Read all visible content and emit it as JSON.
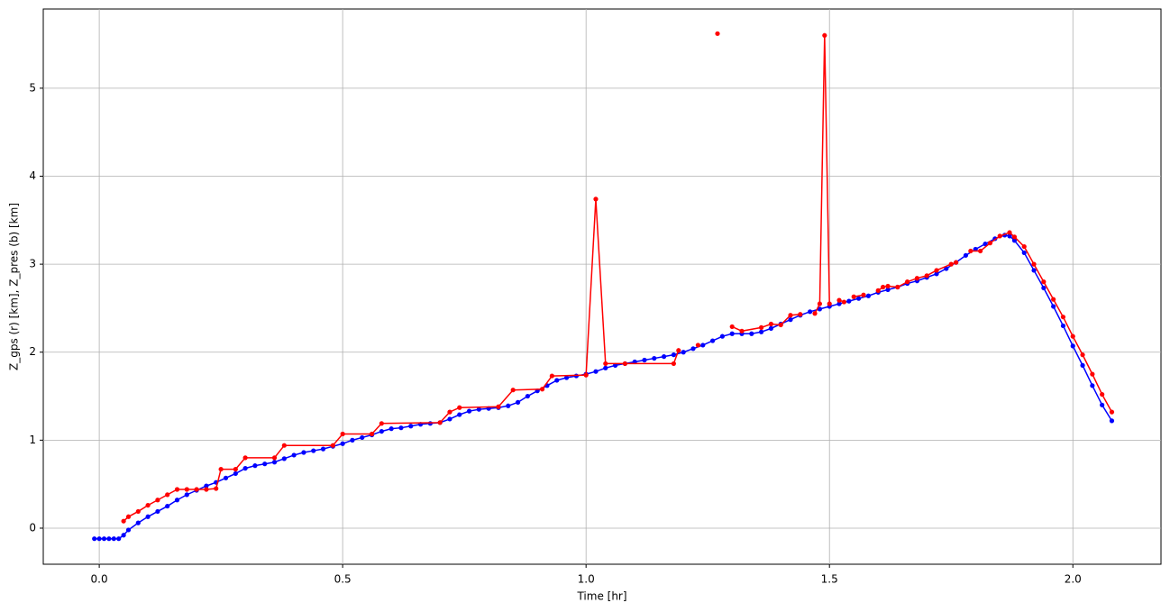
{
  "chart_data": {
    "type": "line",
    "xlabel": "Time [hr]",
    "ylabel": "Z_gps (r) [km], Z_pres (b) [km]",
    "xlim": [
      -0.115,
      2.181
    ],
    "ylim": [
      -0.41,
      5.9
    ],
    "xticks": [
      {
        "value": 0,
        "label": "0.0"
      },
      0.5,
      {
        "value": 1,
        "label": "1.0"
      },
      1.5,
      {
        "value": 2,
        "label": "2.0"
      }
    ],
    "yticks": [
      0,
      1,
      2,
      3,
      4,
      5
    ],
    "grid": true,
    "series": [
      {
        "color": "#0000ff",
        "x": [
          -0.01,
          0.0,
          0.01,
          0.02,
          0.03,
          0.04,
          0.05,
          0.06,
          0.08,
          0.1,
          0.12,
          0.14,
          0.16,
          0.18,
          0.2,
          0.22,
          0.24,
          0.26,
          0.28,
          0.3,
          0.32,
          0.34,
          0.36,
          0.38,
          0.4,
          0.42,
          0.44,
          0.46,
          0.48,
          0.5,
          0.52,
          0.54,
          0.56,
          0.58,
          0.6,
          0.62,
          0.64,
          0.66,
          0.68,
          0.7,
          0.72,
          0.74,
          0.76,
          0.78,
          0.8,
          0.82,
          0.84,
          0.86,
          0.88,
          0.9,
          0.92,
          0.94,
          0.96,
          0.98,
          1.0,
          1.02,
          1.04,
          1.06,
          1.08,
          1.1,
          1.12,
          1.14,
          1.16,
          1.18,
          1.2,
          1.22,
          1.24,
          1.26,
          1.28,
          1.3,
          1.32,
          1.34,
          1.36,
          1.38,
          1.4,
          1.42,
          1.44,
          1.46,
          1.48,
          1.5,
          1.52,
          1.54,
          1.56,
          1.58,
          1.6,
          1.62,
          1.64,
          1.66,
          1.68,
          1.7,
          1.72,
          1.74,
          1.76,
          1.78,
          1.8,
          1.82,
          1.84,
          1.86,
          1.87,
          1.88,
          1.9,
          1.92,
          1.94,
          1.96,
          1.98,
          2.0,
          2.02,
          2.04,
          2.06,
          2.08
        ],
        "values": [
          -0.12,
          -0.12,
          -0.12,
          -0.12,
          -0.12,
          -0.12,
          -0.08,
          -0.02,
          0.06,
          0.13,
          0.19,
          0.25,
          0.32,
          0.38,
          0.43,
          0.48,
          0.52,
          0.57,
          0.62,
          0.68,
          0.71,
          0.73,
          0.75,
          0.79,
          0.83,
          0.86,
          0.88,
          0.9,
          0.93,
          0.96,
          1.0,
          1.03,
          1.06,
          1.1,
          1.13,
          1.14,
          1.16,
          1.18,
          1.19,
          1.2,
          1.24,
          1.29,
          1.33,
          1.35,
          1.36,
          1.37,
          1.39,
          1.43,
          1.5,
          1.56,
          1.62,
          1.68,
          1.71,
          1.73,
          1.75,
          1.78,
          1.82,
          1.85,
          1.87,
          1.89,
          1.91,
          1.93,
          1.95,
          1.97,
          2.0,
          2.04,
          2.08,
          2.13,
          2.18,
          2.21,
          2.21,
          2.21,
          2.23,
          2.27,
          2.32,
          2.37,
          2.42,
          2.46,
          2.49,
          2.52,
          2.55,
          2.58,
          2.61,
          2.64,
          2.68,
          2.71,
          2.74,
          2.78,
          2.81,
          2.85,
          2.89,
          2.95,
          3.02,
          3.1,
          3.17,
          3.23,
          3.29,
          3.33,
          3.32,
          3.27,
          3.13,
          2.93,
          2.73,
          2.52,
          2.3,
          2.07,
          1.85,
          1.62,
          1.4,
          1.22
        ]
      },
      {
        "color": "#ff0000",
        "x": [
          0.05,
          0.06,
          0.08,
          0.1,
          0.12,
          0.14,
          0.16,
          0.18,
          0.2,
          0.22,
          0.24,
          0.25,
          0.28,
          0.3,
          0.36,
          0.38,
          0.48,
          0.5,
          0.56,
          0.58,
          0.7,
          0.72,
          0.74,
          0.82,
          0.85,
          0.91,
          0.93,
          1.0,
          1.02,
          1.04,
          1.08,
          1.18,
          1.19,
          null,
          1.23,
          null,
          1.27,
          null,
          1.3,
          1.32,
          1.36,
          1.38,
          1.4,
          1.42,
          1.44,
          null,
          1.47,
          1.48,
          1.49,
          1.5,
          null,
          1.52,
          1.53,
          null,
          1.55,
          1.57,
          null,
          1.6,
          1.61,
          1.62,
          1.64,
          1.66,
          1.68,
          1.7,
          1.72,
          1.75,
          1.76,
          null,
          1.79,
          1.81,
          1.83,
          1.85,
          1.87,
          1.88,
          1.9,
          1.92,
          1.94,
          1.96,
          1.98,
          2.0,
          2.02,
          2.04,
          2.06,
          2.08
        ],
        "values": [
          0.08,
          0.13,
          0.19,
          0.26,
          0.32,
          0.38,
          0.44,
          0.44,
          0.44,
          0.44,
          0.45,
          0.67,
          0.67,
          0.8,
          0.8,
          0.94,
          0.94,
          1.07,
          1.07,
          1.19,
          1.2,
          1.32,
          1.37,
          1.38,
          1.57,
          1.58,
          1.73,
          1.74,
          3.74,
          1.87,
          1.87,
          1.87,
          2.02,
          null,
          2.08,
          null,
          5.62,
          null,
          2.29,
          2.24,
          2.28,
          2.32,
          2.31,
          2.42,
          2.43,
          null,
          2.44,
          2.55,
          5.6,
          2.55,
          null,
          2.59,
          2.57,
          null,
          2.63,
          2.65,
          null,
          2.7,
          2.74,
          2.75,
          2.74,
          2.8,
          2.84,
          2.87,
          2.93,
          3.0,
          3.02,
          null,
          3.15,
          3.15,
          3.24,
          3.32,
          3.36,
          3.31,
          3.2,
          3.0,
          2.8,
          2.6,
          2.4,
          2.18,
          1.97,
          1.75,
          1.52,
          1.32
        ]
      }
    ]
  }
}
